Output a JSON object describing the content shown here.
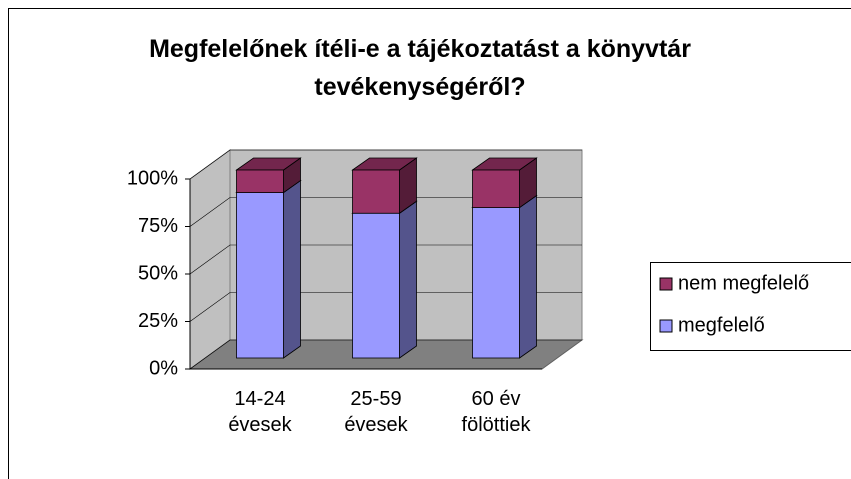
{
  "chart_data": {
    "type": "bar",
    "stacked": true,
    "title": "Megfelelőnek ítéli-e a tájékoztatást a könyvtár tevékenységéről?",
    "categories": [
      "14-24 évesek",
      "25-59 évesek",
      "60 év fölöttiek"
    ],
    "series": [
      {
        "name": "megfelelő",
        "color": "#9999ff",
        "values": [
          88,
          77,
          80
        ]
      },
      {
        "name": "nem megfelelő",
        "color": "#993366",
        "values": [
          12,
          23,
          20
        ]
      }
    ],
    "ylim": [
      0,
      100
    ],
    "yticks": [
      {
        "value": 0,
        "label": "0%"
      },
      {
        "value": 25,
        "label": "25%"
      },
      {
        "value": 50,
        "label": "50%"
      },
      {
        "value": 75,
        "label": "75%"
      },
      {
        "value": 100,
        "label": "100%"
      }
    ],
    "grid": true,
    "legend": "right"
  }
}
